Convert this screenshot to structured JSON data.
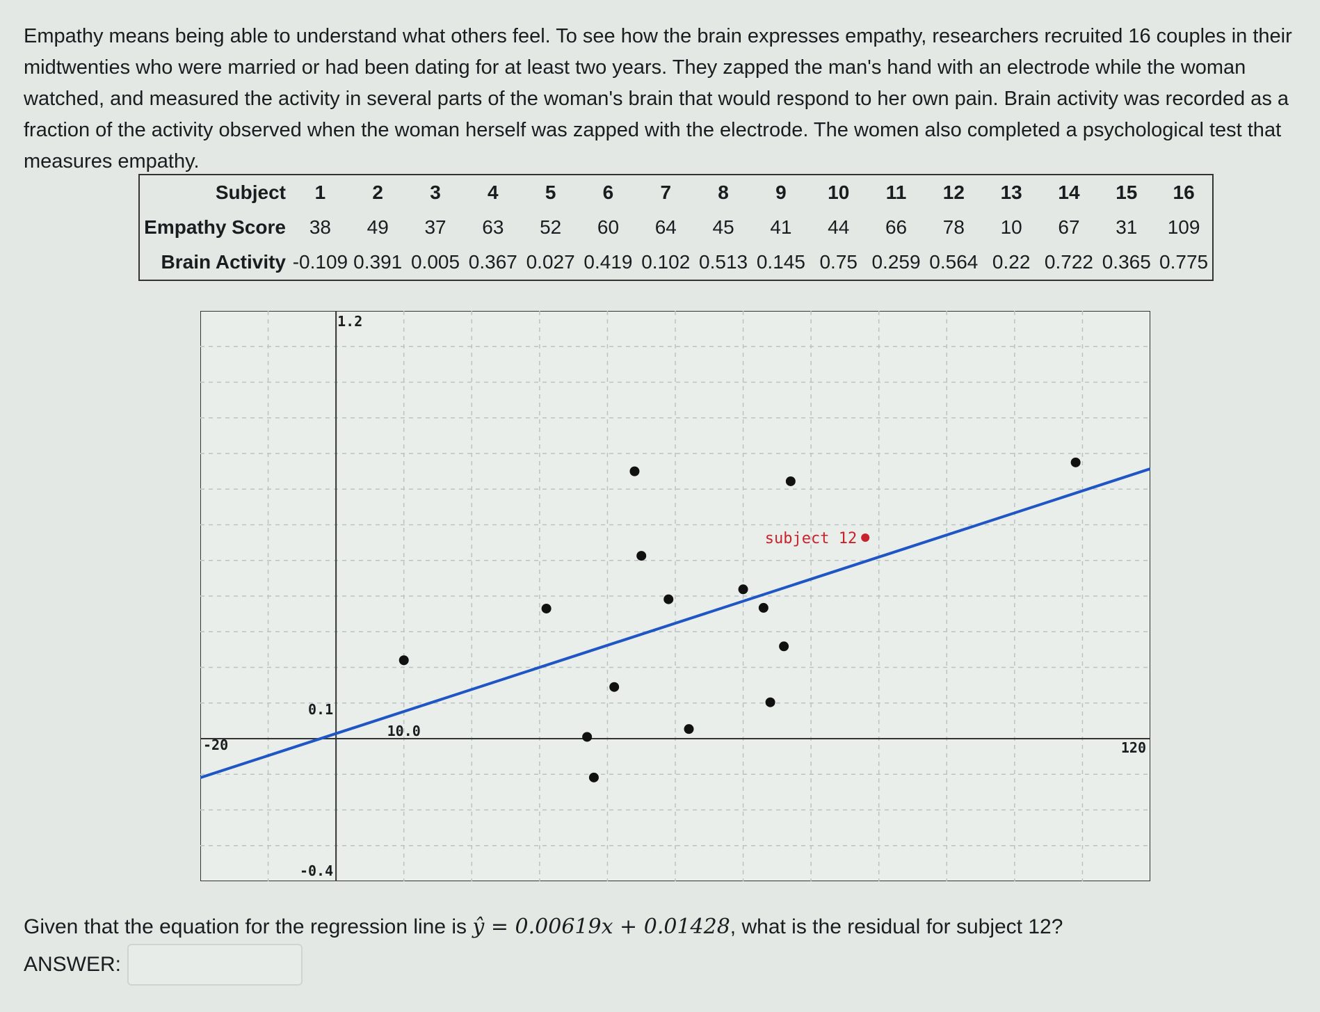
{
  "intro": "Empathy means being able to understand what others feel. To see how the brain expresses empathy, researchers recruited 16 couples in their midtwenties who were married or had been dating for at least two years. They zapped the man's hand with an electrode while the woman watched, and measured the activity in several parts of the woman's brain that would respond to her own pain. Brain activity was recorded as a fraction of the activity observed when the woman herself was zapped with the electrode. The women also completed a psychological test that measures empathy.",
  "table": {
    "row_labels": [
      "Subject",
      "Empathy Score",
      "Brain Activity"
    ],
    "subjects": [
      "1",
      "2",
      "3",
      "4",
      "5",
      "6",
      "7",
      "8",
      "9",
      "10",
      "11",
      "12",
      "13",
      "14",
      "15",
      "16"
    ],
    "empathy": [
      "38",
      "49",
      "37",
      "63",
      "52",
      "60",
      "64",
      "45",
      "41",
      "44",
      "66",
      "78",
      "10",
      "67",
      "31",
      "109"
    ],
    "brain": [
      "-0.109",
      "0.391",
      "0.005",
      "0.367",
      "0.027",
      "0.419",
      "0.102",
      "0.513",
      "0.145",
      "0.75",
      "0.259",
      "0.564",
      "0.22",
      "0.722",
      "0.365",
      "0.775"
    ]
  },
  "chart_data": {
    "type": "scatter",
    "xlim": [
      -20,
      120
    ],
    "ylim": [
      -0.4,
      1.2
    ],
    "tick_labels": {
      "xmin": "-20",
      "xmid": "10.0",
      "xmax": "120",
      "ymax": "1.2",
      "ymid": "0.1",
      "ymin": "-0.4"
    },
    "x_grid_step": 10,
    "y_grid_step": 0.1,
    "points": [
      {
        "x": 38,
        "y": -0.109
      },
      {
        "x": 49,
        "y": 0.391
      },
      {
        "x": 37,
        "y": 0.005
      },
      {
        "x": 63,
        "y": 0.367
      },
      {
        "x": 52,
        "y": 0.027
      },
      {
        "x": 60,
        "y": 0.419
      },
      {
        "x": 64,
        "y": 0.102
      },
      {
        "x": 45,
        "y": 0.513
      },
      {
        "x": 41,
        "y": 0.145
      },
      {
        "x": 44,
        "y": 0.75
      },
      {
        "x": 66,
        "y": 0.259
      },
      {
        "x": 67,
        "y": 0.722
      },
      {
        "x": 10,
        "y": 0.22
      },
      {
        "x": 31,
        "y": 0.365
      },
      {
        "x": 109,
        "y": 0.775
      }
    ],
    "highlight": {
      "x": 78,
      "y": 0.564,
      "label": "subject 12",
      "color": "#c8232c"
    },
    "regression": {
      "slope": 0.00619,
      "intercept": 0.01428,
      "color": "#1f55c4"
    }
  },
  "question": {
    "before": "Given that the equation for the regression line is ",
    "equation": "ŷ = 0.00619x + 0.01428",
    "after": ", what is the residual for subject 12?"
  },
  "answer": {
    "label": "ANSWER:",
    "value": ""
  }
}
